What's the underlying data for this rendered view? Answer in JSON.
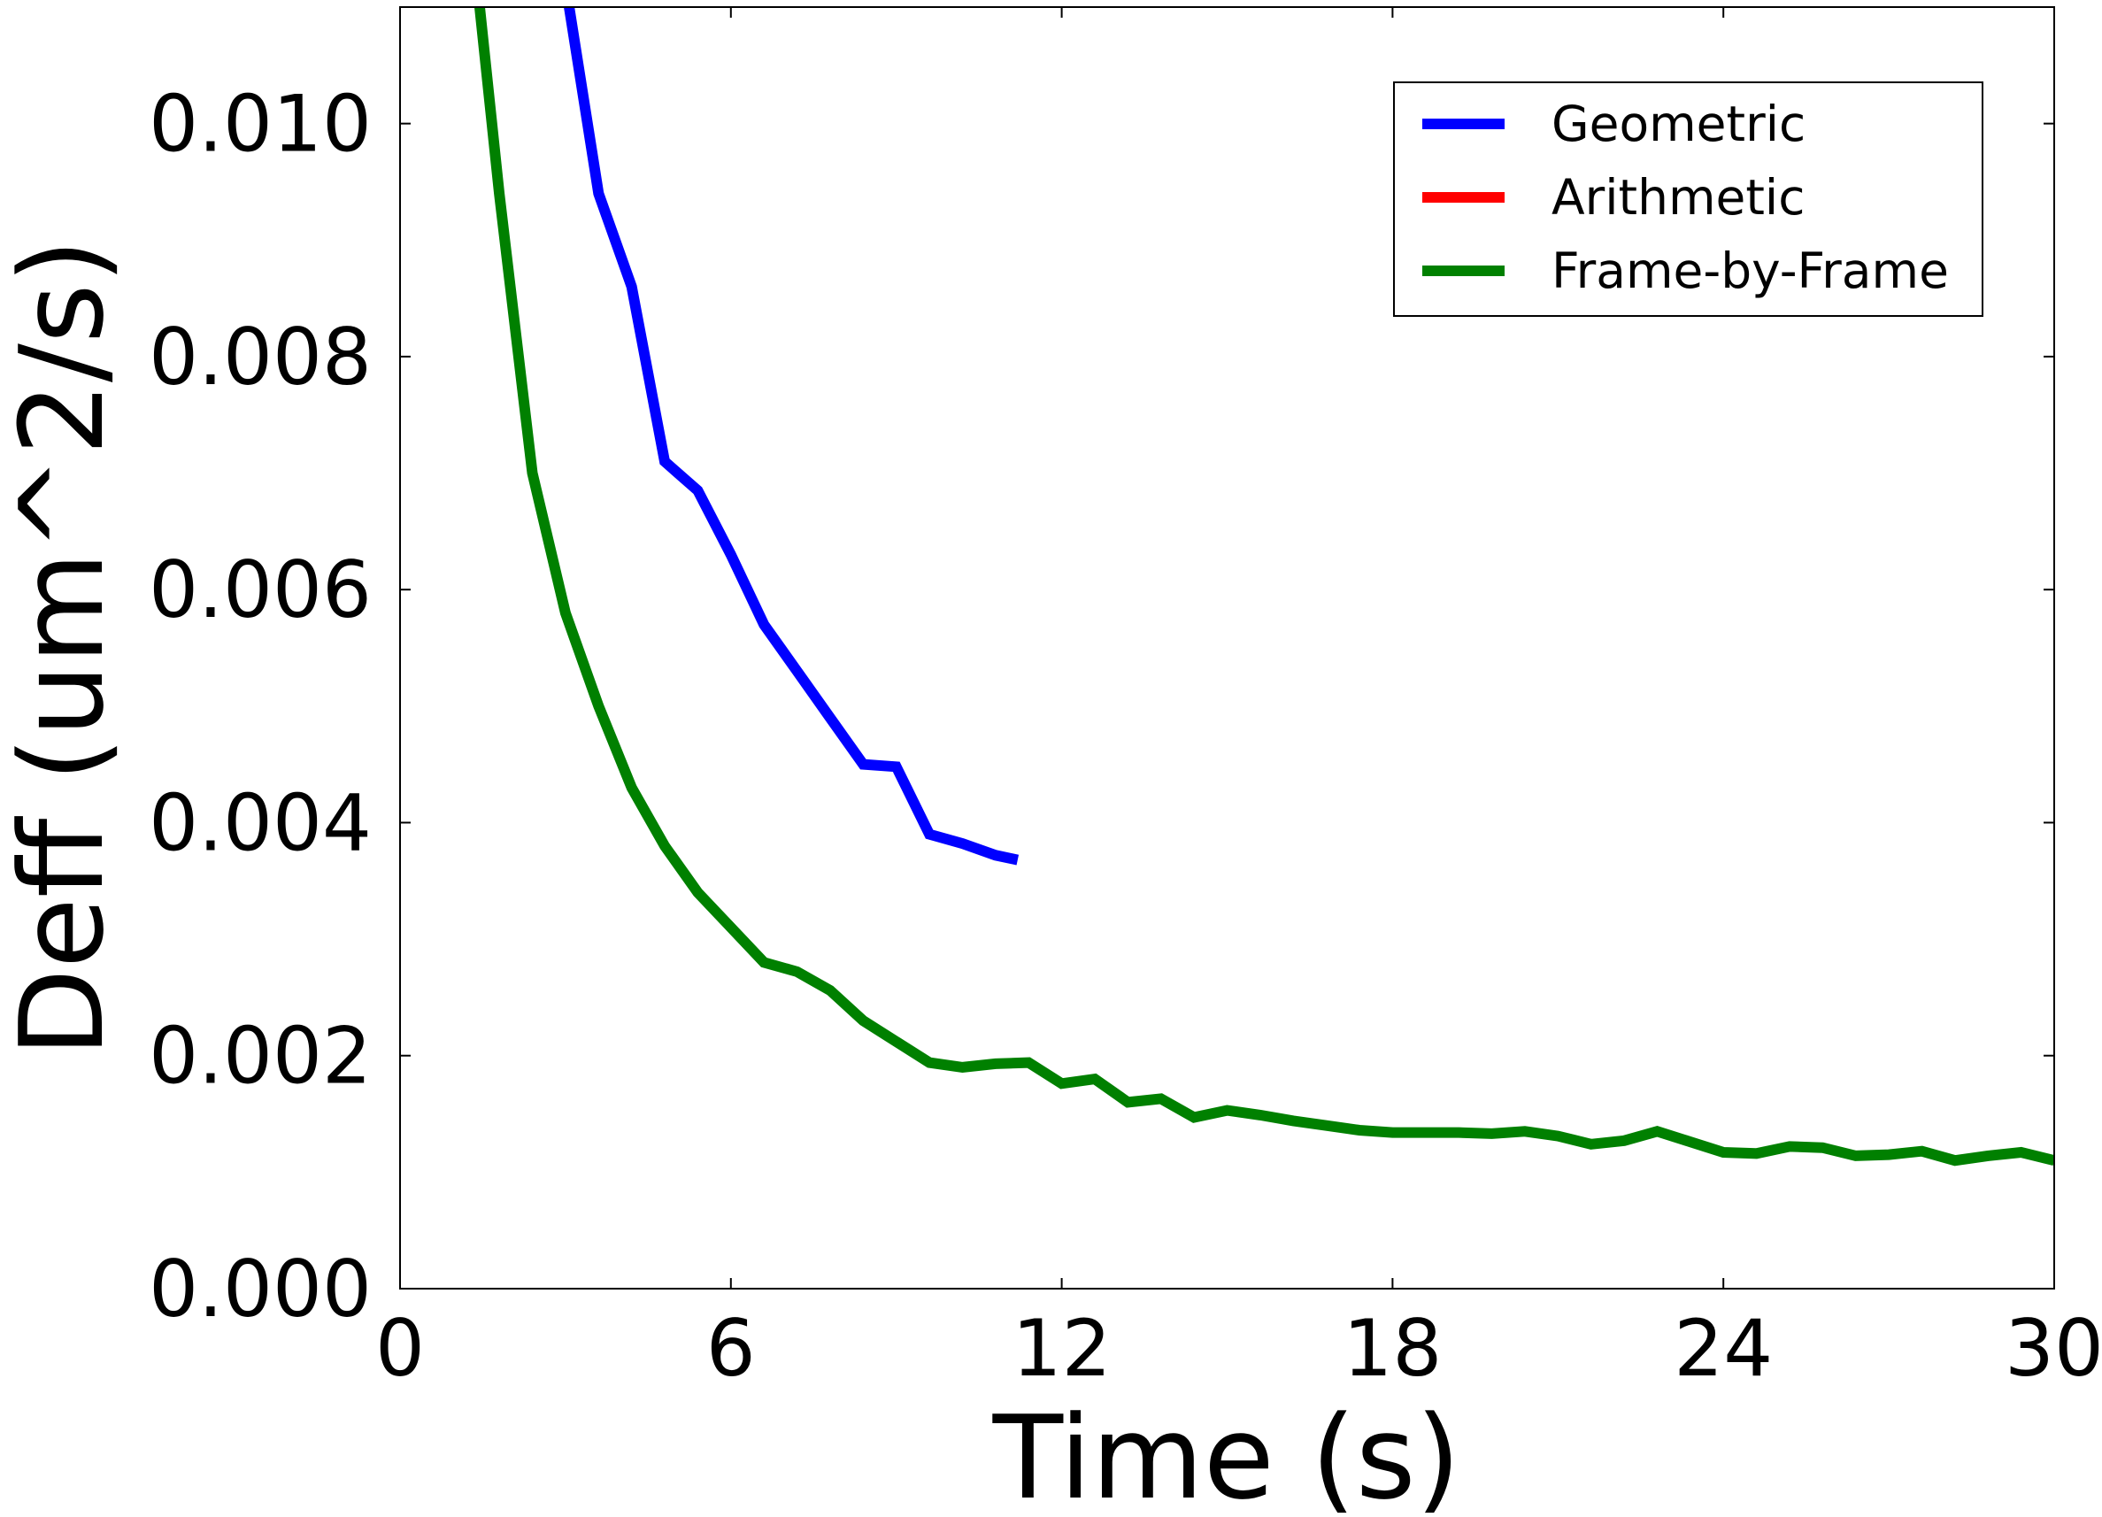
{
  "chart_data": {
    "type": "line",
    "title": "",
    "xlabel": "Time (s)",
    "ylabel": "Deff (um^2/s)",
    "xlim": [
      0,
      30
    ],
    "ylim": [
      0,
      0.011
    ],
    "xticks": [
      "0",
      "6",
      "12",
      "18",
      "24",
      "30"
    ],
    "xtick_values": [
      0,
      6,
      12,
      18,
      24,
      30
    ],
    "yticks": [
      "0.000",
      "0.002",
      "0.004",
      "0.006",
      "0.008",
      "0.010"
    ],
    "ytick_values": [
      0,
      0.002,
      0.004,
      0.006,
      0.008,
      0.01
    ],
    "grid": false,
    "legend_position": "top-right",
    "series": [
      {
        "name": "Geometric",
        "color": "#0000ff",
        "x": [
          3.0,
          3.6,
          4.2,
          4.8,
          5.4,
          6.0,
          6.6,
          7.2,
          7.8,
          8.4,
          9.0,
          9.6,
          10.2,
          10.8,
          11.2
        ],
        "y": [
          0.0112,
          0.0094,
          0.0086,
          0.0071,
          0.00685,
          0.0063,
          0.0057,
          0.0053,
          0.0049,
          0.0045,
          0.00448,
          0.0039,
          0.00382,
          0.00372,
          0.00368
        ]
      },
      {
        "name": "Arithmetic",
        "color": "#ff0000",
        "x": [],
        "y": []
      },
      {
        "name": "Frame-by-Frame",
        "color": "#008000",
        "x": [
          1.4,
          1.8,
          2.4,
          3.0,
          3.6,
          4.2,
          4.8,
          5.4,
          6.0,
          6.6,
          7.2,
          7.8,
          8.4,
          9.0,
          9.6,
          10.2,
          10.8,
          11.4,
          12.0,
          12.6,
          13.2,
          13.8,
          14.4,
          15.0,
          15.6,
          16.2,
          16.8,
          17.4,
          18.0,
          18.6,
          19.2,
          19.8,
          20.4,
          21.0,
          21.6,
          22.2,
          22.8,
          23.4,
          24.0,
          24.6,
          25.2,
          25.8,
          26.4,
          27.0,
          27.6,
          28.2,
          28.8,
          29.4,
          30.0
        ],
        "y": [
          0.0112,
          0.0094,
          0.007,
          0.0058,
          0.005,
          0.0043,
          0.0038,
          0.0034,
          0.0031,
          0.0028,
          0.00272,
          0.00256,
          0.0023,
          0.00212,
          0.00194,
          0.0019,
          0.00193,
          0.00194,
          0.00176,
          0.0018,
          0.0016,
          0.00163,
          0.00147,
          0.00153,
          0.00149,
          0.00144,
          0.0014,
          0.00136,
          0.00134,
          0.00134,
          0.00134,
          0.00133,
          0.00135,
          0.00131,
          0.00124,
          0.00127,
          0.00135,
          0.00126,
          0.00117,
          0.00116,
          0.00122,
          0.00121,
          0.00114,
          0.00115,
          0.00118,
          0.0011,
          0.00114,
          0.00117,
          0.0011
        ]
      }
    ]
  }
}
